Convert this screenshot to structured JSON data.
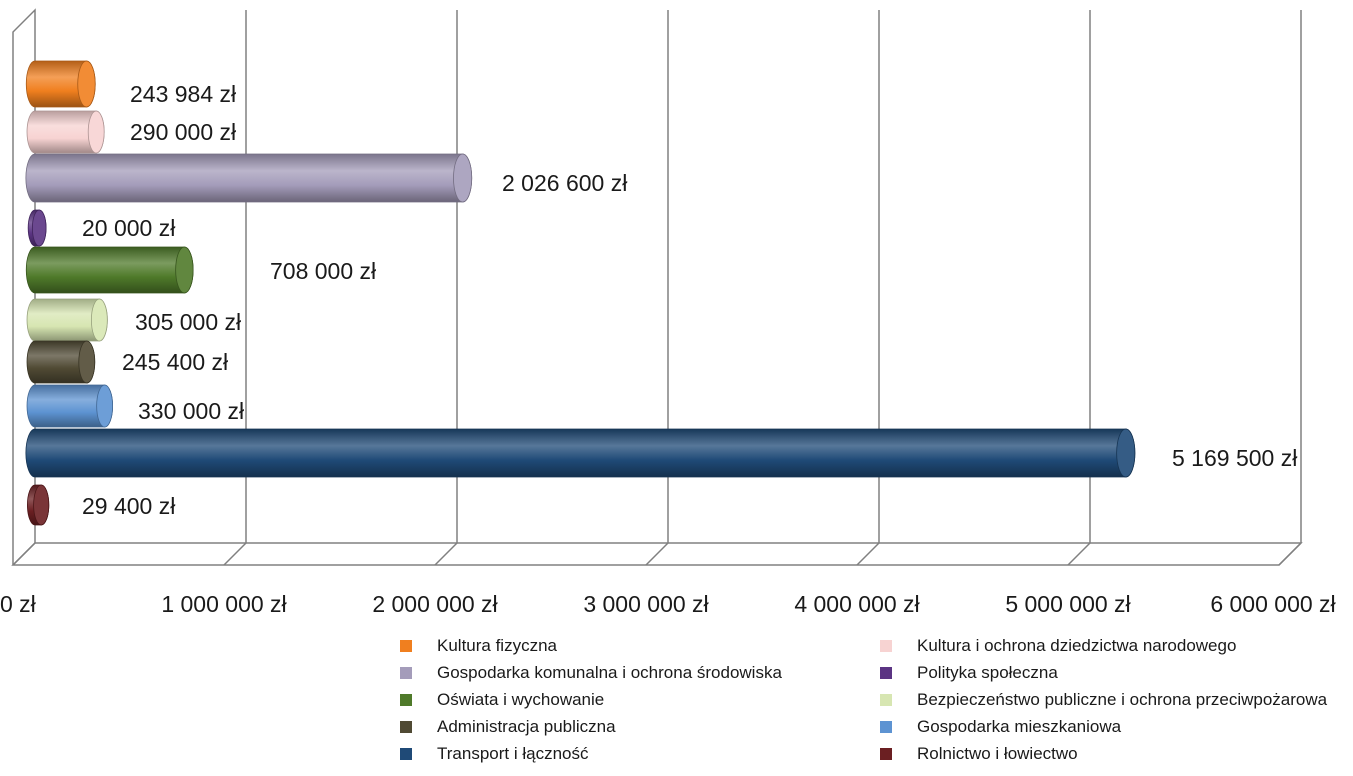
{
  "chart_data": {
    "type": "bar",
    "orientation": "horizontal",
    "xlim": [
      0,
      6000000
    ],
    "grid": true,
    "legend_position": "bottom",
    "x_ticks": [
      "0 zł",
      "1 000 000 zł",
      "2 000 000 zł",
      "3 000 000 zł",
      "4 000 000 zł",
      "5 000 000 zł",
      "6 000 000 zł"
    ],
    "series": [
      {
        "name": "Kultura fizyczna",
        "value": 243984,
        "label": "243 984 zł",
        "color": "#f07f1f"
      },
      {
        "name": "Kultura i ochrona dziedzictwa narodowego",
        "value": 290000,
        "label": "290 000 zł",
        "color": "#f7d3d2"
      },
      {
        "name": "Gospodarka komunalna i ochrona środowiska",
        "value": 2026600,
        "label": "2 026 600 zł",
        "color": "#a49cba"
      },
      {
        "name": "Polityka społeczna",
        "value": 20000,
        "label": "20 000 zł",
        "color": "#5b3483"
      },
      {
        "name": "Oświata i wychowanie",
        "value": 708000,
        "label": "708 000 zł",
        "color": "#4f7a2a"
      },
      {
        "name": "Bezpieczeństwo publiczne i ochrona przeciwpożarowa",
        "value": 305000,
        "label": "305 000 zł",
        "color": "#d7e6b2"
      },
      {
        "name": "Administracja publiczna",
        "value": 245400,
        "label": "245 400 zł",
        "color": "#504a34"
      },
      {
        "name": "Gospodarka mieszkaniowa",
        "value": 330000,
        "label": "330 000 zł",
        "color": "#5d93d2"
      },
      {
        "name": "Transport i łączność",
        "value": 5169500,
        "label": "5 169 500 zł",
        "color": "#1f4a77"
      },
      {
        "name": "Rolnictwo i łowiectwo",
        "value": 29400,
        "label": "29 400 zł",
        "color": "#6b1f22"
      }
    ]
  }
}
